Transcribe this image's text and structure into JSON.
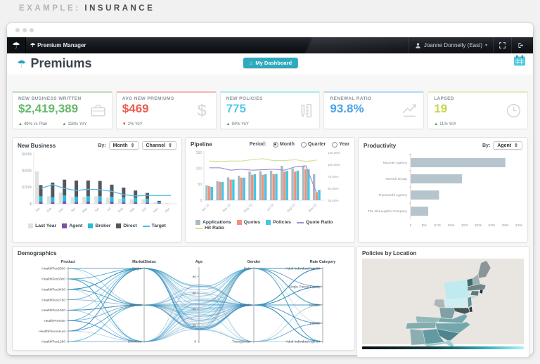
{
  "page": {
    "heading_prefix": "EXAMPLE:",
    "heading_topic": "INSURANCE"
  },
  "icons": {
    "umbrella": "☂",
    "caret_down": "▾",
    "updown": "⇕",
    "home": "⌂"
  },
  "navbar": {
    "brand": "Premium Manager",
    "user_name": "Joanne Donnelly (East)"
  },
  "header": {
    "title": "Premiums",
    "dashboard_button": "My Dashboard"
  },
  "kpis": [
    {
      "label": "NEW BUSINESS WRITTEN",
      "value": "$2,419,389",
      "value_color": "#66b96a",
      "accent": "#badfbc",
      "icon": "briefcase-icon",
      "foot1_arrow": "▲",
      "foot1_color": "#3faf4b",
      "foot1_text": "49% vs Plan",
      "foot2_arrow": "▲",
      "foot2_color": "#3faf4b",
      "foot2_text": "118% YoY"
    },
    {
      "label": "AVG NEW PREMIUMS",
      "value": "$469",
      "value_color": "#ee5a50",
      "accent": "#f5b7b2",
      "icon": "dollar-icon",
      "foot1_arrow": "▼",
      "foot1_color": "#e03b30",
      "foot1_text": "2% YoY",
      "foot2_arrow": "",
      "foot2_color": "",
      "foot2_text": ""
    },
    {
      "label": "NEW POLICIES",
      "value": "775",
      "value_color": "#55c9e8",
      "accent": "#aee7f0",
      "icon": "policies-icon",
      "foot1_arrow": "▲",
      "foot1_color": "#3faf4b",
      "foot1_text": "94% YoY",
      "foot2_arrow": "",
      "foot2_color": "",
      "foot2_text": ""
    },
    {
      "label": "RENEWAL RATIO",
      "value": "93.8%",
      "value_color": "#4aa3e8",
      "accent": "#b3d9f5",
      "icon": "trend-up-icon",
      "foot1_arrow": "",
      "foot1_color": "",
      "foot1_text": "",
      "foot2_arrow": "",
      "foot2_color": "",
      "foot2_text": ""
    },
    {
      "label": "LAPSED",
      "value": "19",
      "value_color": "#c4d64c",
      "accent": "#e7edb4",
      "icon": "clock-icon",
      "foot1_arrow": "▲",
      "foot1_color": "#3faf4b",
      "foot1_text": "11% YoY",
      "foot2_arrow": "",
      "foot2_color": "",
      "foot2_text": ""
    }
  ],
  "panels": {
    "new_business": {
      "title": "New Business",
      "by_label": "By:",
      "dropdown1": "Month",
      "dropdown2": "Channel",
      "legend": [
        {
          "label": "Last Year",
          "color": "#e1e1e1",
          "shape": "box"
        },
        {
          "label": "Agent",
          "color": "#7b52ab",
          "shape": "box"
        },
        {
          "label": "Broker",
          "color": "#29bcd8",
          "shape": "box"
        },
        {
          "label": "Direct",
          "color": "#54585c",
          "shape": "box"
        },
        {
          "label": "Target",
          "color": "#56b9e8",
          "shape": "line"
        }
      ]
    },
    "pipeline": {
      "title": "Pipeline",
      "period_label": "Period:",
      "period_options": [
        "Month",
        "Quarter",
        "Year"
      ],
      "selected_period": "Month",
      "legend": [
        {
          "label": "Applications",
          "color": "#a9bac2",
          "shape": "box"
        },
        {
          "label": "Quotes",
          "color": "#f2907b",
          "shape": "box"
        },
        {
          "label": "Policies",
          "color": "#3fc9e4",
          "shape": "box"
        },
        {
          "label": "Quote Ratio",
          "color": "#a08cd8",
          "shape": "line"
        },
        {
          "label": "Hit Ratio",
          "color": "#d6e09a",
          "shape": "line"
        }
      ]
    },
    "productivity": {
      "title": "Productivity",
      "by_label": "By:",
      "dropdown": "Agent"
    },
    "demographics": {
      "title": "Demographics"
    },
    "policies_by_location": {
      "title": "Policies by Location"
    }
  },
  "chart_data": [
    {
      "name": "new_business",
      "type": "bar",
      "subtype": "stacked-with-comparison-and-target-line",
      "categories": [
        "Jan",
        "Feb",
        "Mar",
        "Apr",
        "May",
        "Jun",
        "Jul",
        "Aug",
        "Sep",
        "Oct",
        "Nov",
        "Dec"
      ],
      "unit": "$k",
      "series": [
        {
          "name": "Last Year",
          "role": "bar",
          "color": "#e1e1e1",
          "values": [
            390,
            90,
            135,
            80,
            85,
            90,
            75,
            60,
            55,
            55,
            20,
            10
          ]
        },
        {
          "name": "Agent",
          "role": "stack",
          "color": "#7b52ab",
          "values": [
            25,
            20,
            30,
            20,
            25,
            25,
            25,
            20,
            20,
            15,
            5,
            0
          ]
        },
        {
          "name": "Broker",
          "role": "stack",
          "color": "#29bcd8",
          "values": [
            65,
            60,
            70,
            65,
            65,
            65,
            60,
            55,
            50,
            45,
            15,
            0
          ]
        },
        {
          "name": "Direct",
          "role": "stack",
          "color": "#54585c",
          "values": [
            135,
            175,
            190,
            195,
            190,
            185,
            145,
            120,
            90,
            70,
            15,
            0
          ]
        },
        {
          "name": "Target",
          "role": "line",
          "color": "#56b9e8",
          "values": [
            185,
            230,
            185,
            160,
            175,
            170,
            150,
            110,
            95,
            100,
            100,
            100
          ]
        }
      ],
      "ylim": [
        0,
        600
      ],
      "ytick_values": [
        600,
        400,
        200,
        0
      ],
      "ytick_labels": [
        "$600k",
        "$400k",
        "$200k",
        "$"
      ]
    },
    {
      "name": "pipeline",
      "type": "bar",
      "subtype": "grouped-with-ratio-lines",
      "categories": [
        "Jan 13",
        "Feb 13",
        "Mar 13",
        "Apr 13",
        "May 13",
        "Jun 13",
        "Jul 13",
        "Aug 13",
        "Sep 13",
        "Oct 13",
        "Nov 13"
      ],
      "xticks_shown_indices": [
        0,
        2,
        4,
        6,
        8,
        10
      ],
      "series": [
        {
          "name": "Applications",
          "role": "bar",
          "color": "#a9bac2",
          "values": [
            47,
            60,
            72,
            77,
            90,
            91,
            93,
            108,
            100,
            108,
            82
          ]
        },
        {
          "name": "Quotes",
          "role": "bar",
          "color": "#f2907b",
          "values": [
            44,
            58,
            65,
            71,
            80,
            80,
            82,
            90,
            90,
            97,
            25
          ]
        },
        {
          "name": "Policies",
          "role": "bar",
          "color": "#3fc9e4",
          "values": [
            42,
            57,
            65,
            71,
            82,
            82,
            83,
            92,
            93,
            97,
            33
          ]
        },
        {
          "name": "Quote Ratio",
          "role": "line",
          "axis": "right",
          "color": "#a08cd8",
          "values": [
            93,
            93,
            88,
            90,
            88,
            89,
            90,
            88,
            95,
            97,
            40
          ]
        },
        {
          "name": "Hit Ratio",
          "role": "line",
          "axis": "right",
          "color": "#d6e09a",
          "values": [
            107,
            106,
            107,
            107,
            110,
            112,
            108,
            108,
            110,
            106,
            109
          ]
        }
      ],
      "ylim_left": [
        0,
        150
      ],
      "ytick_left": [
        150,
        100,
        50,
        0
      ],
      "ylim_right": [
        25,
        125
      ],
      "ytick_right_values": [
        125,
        100,
        75,
        50,
        25
      ],
      "ytick_right_labels": [
        "125.00%",
        "100.00%",
        "75.00%",
        "50.00%",
        "25.00%"
      ]
    },
    {
      "name": "productivity",
      "type": "bar",
      "subtype": "horizontal",
      "categories": [
        "McLean Agency",
        "Norvick Group",
        "Transworld Agency",
        "The McLaughlin Company"
      ],
      "values": [
        35000,
        19000,
        10500,
        6500
      ],
      "bar_color": "#b6c5cd",
      "xlim": [
        0,
        40000
      ],
      "xtick_values": [
        0,
        5000,
        10000,
        15000,
        20000,
        25000,
        30000,
        35000,
        40000
      ],
      "xtick_labels": [
        "$",
        "$5k",
        "$10k",
        "$15k",
        "$20k",
        "$25k",
        "$30k",
        "$35k",
        "$40k"
      ]
    },
    {
      "name": "demographics",
      "type": "line",
      "subtype": "parallel-coordinates",
      "axes": [
        {
          "title": "Product",
          "type": "cat",
          "labels": [
            "HealthFlex5500",
            "HealthFlex5000",
            "HealthFlex3400",
            "HealthFlex2750",
            "HealthFlex1500",
            "HealthPremier",
            "HealthFlexAssure",
            "HealthFlex1250"
          ]
        },
        {
          "title": "MaritalStatus",
          "type": "cat",
          "labels": [
            "Single",
            "Married",
            "Divorced"
          ]
        },
        {
          "title": "Age",
          "type": "num",
          "min": 0,
          "max": 90,
          "tick_values": [
            80,
            60,
            40,
            20,
            0
          ],
          "tick_labels": [
            "80",
            "60",
            "40",
            "20",
            "0"
          ]
        },
        {
          "title": "Gender",
          "type": "cat",
          "labels": [
            "Male",
            "Female",
            "Transgender"
          ]
        },
        {
          "title": "Rate Category",
          "type": "cat",
          "labels": [
            "Adult Individual Age 29",
            "Single Parent Family",
            "Couple",
            "Family",
            "Adult Individual Age 50"
          ]
        }
      ],
      "line_colors": {
        "primary": "#2e8fbf",
        "muted": "#9aa2a6"
      }
    },
    {
      "name": "policies_by_location",
      "type": "heatmap",
      "subtype": "choropleth-map",
      "background": "#e9e6e1",
      "regions": [
        {
          "state": "NY",
          "color": "#bfeaf0"
        },
        {
          "state": "PA",
          "color": "#cdeff3"
        },
        {
          "state": "LI",
          "color": "#9fd9e0"
        },
        {
          "state": "ME",
          "color": "#8a9598"
        },
        {
          "state": "NH",
          "color": "#9fb0b2"
        },
        {
          "state": "VT",
          "color": "#3a6d72"
        },
        {
          "state": "MA",
          "color": "#6d8589"
        },
        {
          "state": "RI",
          "color": "#223033"
        },
        {
          "state": "CT",
          "color": "#5a7d81"
        },
        {
          "state": "NJ",
          "color": "#58939b"
        },
        {
          "state": "DE",
          "color": "#2e3c3e"
        },
        {
          "state": "MD",
          "color": "#44585a"
        },
        {
          "state": "OH",
          "color": "#aeb6b4"
        },
        {
          "state": "WV",
          "color": "#7fa0a4"
        },
        {
          "state": "VA",
          "color": "#72a8ae"
        },
        {
          "state": "KY",
          "color": "#93b7ba"
        },
        {
          "state": "TN",
          "color": "#82acb0"
        },
        {
          "state": "NC",
          "color": "#74a6ac"
        },
        {
          "state": "SC",
          "color": "#4e858c"
        },
        {
          "state": "GA",
          "color": "#639aa1"
        },
        {
          "state": "AL",
          "color": "#8aaeb2"
        },
        {
          "state": "FL",
          "color": "#9ccfd4"
        }
      ],
      "colorbar": {
        "from": "#0b0d0e",
        "mid": "#2fa9b8",
        "to": "#a5f4fa"
      }
    }
  ]
}
